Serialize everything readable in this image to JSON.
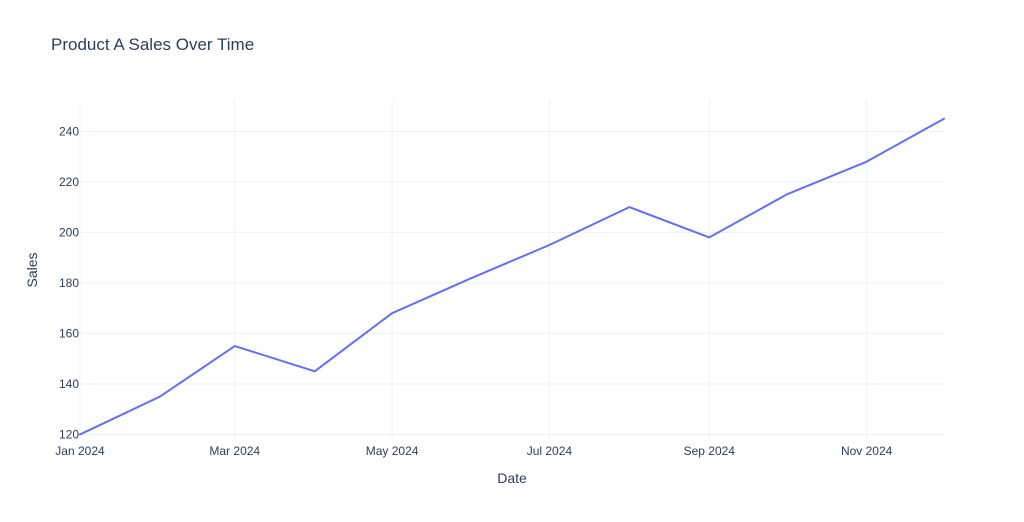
{
  "chart_data": {
    "type": "line",
    "title": "Product A Sales Over Time",
    "xlabel": "Date",
    "ylabel": "Sales",
    "x": [
      "2024-01-01",
      "2024-02-01",
      "2024-03-01",
      "2024-04-01",
      "2024-05-01",
      "2024-06-01",
      "2024-07-01",
      "2024-08-01",
      "2024-09-01",
      "2024-10-01",
      "2024-11-01",
      "2024-12-01"
    ],
    "series": [
      {
        "values": [
          120,
          135,
          155,
          145,
          168,
          182,
          195,
          210,
          198,
          215,
          228,
          245
        ]
      }
    ],
    "x_ticks": [
      {
        "date": "2024-01-01",
        "label": "Jan 2024"
      },
      {
        "date": "2024-03-01",
        "label": "Mar 2024"
      },
      {
        "date": "2024-05-01",
        "label": "May 2024"
      },
      {
        "date": "2024-07-01",
        "label": "Jul 2024"
      },
      {
        "date": "2024-09-01",
        "label": "Sep 2024"
      },
      {
        "date": "2024-11-01",
        "label": "Nov 2024"
      }
    ],
    "y_ticks": [
      120,
      140,
      160,
      180,
      200,
      220,
      240
    ],
    "xlim": [
      "2024-01-01",
      "2024-12-01"
    ],
    "ylim": [
      118.6,
      252.4
    ],
    "grid": true,
    "colors": {
      "line": "#636efa",
      "grid": "#ebf0f8",
      "text": "#2a3f5f"
    }
  }
}
